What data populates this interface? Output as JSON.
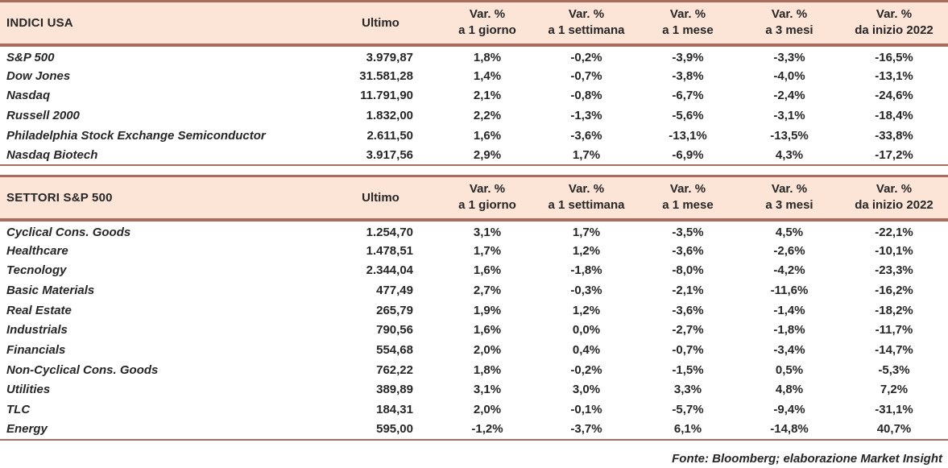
{
  "colors": {
    "header_bg": "#fce4d6",
    "border": "#a96c5e",
    "text": "#262626"
  },
  "tables": [
    {
      "title": "INDICI USA",
      "ultimo_label": "Ultimo",
      "var_label": "Var. %",
      "periods": [
        "a 1 giorno",
        "a 1 settimana",
        "a 1 mese",
        "a 3 mesi",
        "da inizio 2022"
      ],
      "rows": [
        {
          "name": "S&P 500",
          "ultimo": "3.979,87",
          "vars": [
            "1,8%",
            "-0,2%",
            "-3,9%",
            "-3,3%",
            "-16,5%"
          ]
        },
        {
          "name": "Dow Jones",
          "ultimo": "31.581,28",
          "vars": [
            "1,4%",
            "-0,7%",
            "-3,8%",
            "-4,0%",
            "-13,1%"
          ]
        },
        {
          "name": "Nasdaq",
          "ultimo": "11.791,90",
          "vars": [
            "2,1%",
            "-0,8%",
            "-6,7%",
            "-2,4%",
            "-24,6%"
          ]
        },
        {
          "name": "Russell 2000",
          "ultimo": "1.832,00",
          "vars": [
            "2,2%",
            "-1,3%",
            "-5,6%",
            "-3,1%",
            "-18,4%"
          ]
        },
        {
          "name": "Philadelphia Stock Exchange Semiconductor",
          "ultimo": "2.611,50",
          "vars": [
            "1,6%",
            "-3,6%",
            "-13,1%",
            "-13,5%",
            "-33,8%"
          ]
        },
        {
          "name": "Nasdaq Biotech",
          "ultimo": "3.917,56",
          "vars": [
            "2,9%",
            "1,7%",
            "-6,9%",
            "4,3%",
            "-17,2%"
          ]
        }
      ]
    },
    {
      "title": "SETTORI S&P 500",
      "ultimo_label": "Ultimo",
      "var_label": "Var. %",
      "periods": [
        "a 1 giorno",
        "a 1 settimana",
        "a 1 mese",
        "a 3 mesi",
        "da inizio 2022"
      ],
      "rows": [
        {
          "name": "Cyclical Cons. Goods",
          "ultimo": "1.254,70",
          "vars": [
            "3,1%",
            "1,7%",
            "-3,5%",
            "4,5%",
            "-22,1%"
          ]
        },
        {
          "name": "Healthcare",
          "ultimo": "1.478,51",
          "vars": [
            "1,7%",
            "1,2%",
            "-3,6%",
            "-2,6%",
            "-10,1%"
          ]
        },
        {
          "name": "Tecnology",
          "ultimo": "2.344,04",
          "vars": [
            "1,6%",
            "-1,8%",
            "-8,0%",
            "-4,2%",
            "-23,3%"
          ]
        },
        {
          "name": "Basic Materials",
          "ultimo": "477,49",
          "vars": [
            "2,7%",
            "-0,3%",
            "-2,1%",
            "-11,6%",
            "-16,2%"
          ]
        },
        {
          "name": "Real Estate",
          "ultimo": "265,79",
          "vars": [
            "1,9%",
            "1,2%",
            "-3,6%",
            "-1,4%",
            "-18,2%"
          ]
        },
        {
          "name": "Industrials",
          "ultimo": "790,56",
          "vars": [
            "1,6%",
            "0,0%",
            "-2,7%",
            "-1,8%",
            "-11,7%"
          ]
        },
        {
          "name": "Financials",
          "ultimo": "554,68",
          "vars": [
            "2,0%",
            "0,4%",
            "-0,7%",
            "-3,4%",
            "-14,7%"
          ]
        },
        {
          "name": "Non-Cyclical Cons. Goods",
          "ultimo": "762,22",
          "vars": [
            "1,8%",
            "-0,2%",
            "-1,5%",
            "0,5%",
            "-5,3%"
          ]
        },
        {
          "name": "Utilities",
          "ultimo": "389,89",
          "vars": [
            "3,1%",
            "3,0%",
            "3,3%",
            "4,8%",
            "7,2%"
          ]
        },
        {
          "name": "TLC",
          "ultimo": "184,31",
          "vars": [
            "2,0%",
            "-0,1%",
            "-5,7%",
            "-9,4%",
            "-31,1%"
          ]
        },
        {
          "name": "Energy",
          "ultimo": "595,00",
          "vars": [
            "-1,2%",
            "-3,7%",
            "6,1%",
            "-14,8%",
            "40,7%"
          ]
        }
      ]
    }
  ],
  "footer": {
    "source": "Fonte: Bloomberg; elaborazione Market Insight"
  }
}
